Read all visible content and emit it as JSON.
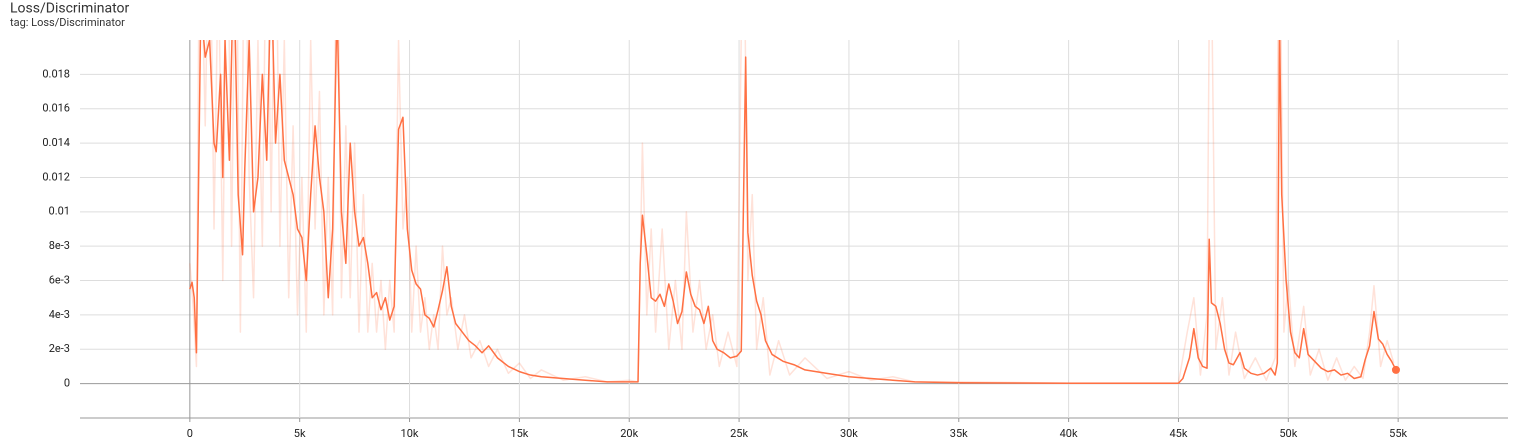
{
  "chart_data": {
    "type": "line",
    "title": "Loss/Discriminator",
    "subtitle": "tag: Loss/Discriminator",
    "xlim": [
      -5000,
      60000
    ],
    "ylim": [
      -0.002,
      0.02
    ],
    "xticks": [
      0,
      {
        "value": 5000,
        "label": "5k"
      },
      {
        "value": 10000,
        "label": "10k"
      },
      {
        "value": 15000,
        "label": "15k"
      },
      {
        "value": 20000,
        "label": "20k"
      },
      {
        "value": 25000,
        "label": "25k"
      },
      {
        "value": 30000,
        "label": "30k"
      },
      {
        "value": 35000,
        "label": "35k"
      },
      {
        "value": 40000,
        "label": "40k"
      },
      {
        "value": 45000,
        "label": "45k"
      },
      {
        "value": 50000,
        "label": "50k"
      },
      {
        "value": 55000,
        "label": "55k"
      }
    ],
    "yticks": [
      0,
      {
        "value": 0.002,
        "label": "2e-3"
      },
      {
        "value": 0.004,
        "label": "4e-3"
      },
      {
        "value": 0.006,
        "label": "6e-3"
      },
      {
        "value": 0.008,
        "label": "8e-3"
      },
      0.01,
      0.012,
      0.014,
      0.016,
      0.018
    ],
    "grid": true,
    "series": [
      {
        "color": "#ff7043",
        "opacity": 0.2,
        "x": [
          0,
          150,
          300,
          450,
          700,
          900,
          1100,
          1300,
          1500,
          1700,
          1900,
          2100,
          2300,
          2500,
          2700,
          2900,
          3100,
          3300,
          3500,
          3700,
          3900,
          4100,
          4300,
          4500,
          4700,
          4900,
          5100,
          5300,
          5500,
          5700,
          5900,
          6100,
          6300,
          6500,
          6700,
          6900,
          7100,
          7300,
          7500,
          7700,
          7900,
          8100,
          8300,
          8500,
          8700,
          8900,
          9100,
          9300,
          9500,
          9700,
          9900,
          10100,
          10300,
          10500,
          10700,
          10900,
          11100,
          11300,
          11500,
          11700,
          11900,
          12200,
          12500,
          12800,
          13200,
          13600,
          14000,
          14500,
          15000,
          15500,
          16000,
          17000,
          18000,
          19000,
          20000,
          20400,
          20600,
          20800,
          21000,
          21200,
          21500,
          21800,
          22100,
          22400,
          22600,
          22900,
          23200,
          23500,
          23800,
          24100,
          24500,
          24900,
          25200,
          25400,
          25600,
          25800,
          26100,
          26400,
          26800,
          27300,
          28000,
          29000,
          30000,
          31000,
          32000,
          33000,
          35000,
          40000,
          45000,
          45400,
          45700,
          46000,
          46300,
          46450,
          46700,
          47000,
          47300,
          47600,
          48000,
          48500,
          49000,
          49400,
          49600,
          49800,
          50000,
          50300,
          50700,
          51000,
          51400,
          51800,
          52200,
          52600,
          53000,
          53400,
          53700,
          53900,
          54200,
          54500,
          54800
        ],
        "values": [
          0.007,
          0.0045,
          0.001,
          0.03,
          0.015,
          0.03,
          0.009,
          0.025,
          0.006,
          0.03,
          0.008,
          0.03,
          0.003,
          0.03,
          0.012,
          0.005,
          0.02,
          0.008,
          0.03,
          0.01,
          0.03,
          0.008,
          0.02,
          0.005,
          0.015,
          0.004,
          0.012,
          0.003,
          0.02,
          0.009,
          0.017,
          0.004,
          0.012,
          0.004,
          0.03,
          0.005,
          0.015,
          0.005,
          0.014,
          0.003,
          0.011,
          0.003,
          0.007,
          0.003,
          0.006,
          0.002,
          0.006,
          0.003,
          0.02,
          0.009,
          0.012,
          0.003,
          0.008,
          0.003,
          0.005,
          0.002,
          0.004,
          0.002,
          0.008,
          0.004,
          0.005,
          0.002,
          0.004,
          0.0015,
          0.0025,
          0.001,
          0.002,
          0.0006,
          0.0012,
          0.0003,
          0.0008,
          0.0002,
          0.0004,
          0.0001,
          0.0002,
          0.0001,
          0.014,
          0.004,
          0.009,
          0.003,
          0.009,
          0.002,
          0.006,
          0.002,
          0.01,
          0.003,
          0.006,
          0.002,
          0.004,
          0.001,
          0.003,
          0.001,
          0.03,
          0.006,
          0.011,
          0.002,
          0.005,
          0.0005,
          0.0025,
          0.0005,
          0.0015,
          0.0003,
          0.0007,
          0.0002,
          0.0004,
          0.0001,
          0.0001,
          3e-05,
          3e-05,
          0.003,
          0.005,
          0.0005,
          0.004,
          0.03,
          0.002,
          0.005,
          0.0005,
          0.003,
          0.0003,
          0.0015,
          0.0002,
          0.0015,
          0.03,
          0.003,
          0.006,
          0.001,
          0.0045,
          0.0005,
          0.002,
          0.0002,
          0.0015,
          0.0002,
          0.001,
          0.0003,
          0.003,
          0.0057,
          0.001,
          0.0025,
          0.0012
        ]
      },
      {
        "color": "#ff7043",
        "opacity": 1,
        "x": [
          0,
          100,
          200,
          300,
          400,
          500,
          700,
          900,
          1100,
          1200,
          1400,
          1500,
          1600,
          1800,
          2000,
          2200,
          2400,
          2500,
          2700,
          2900,
          3100,
          3300,
          3500,
          3700,
          3900,
          4100,
          4300,
          4500,
          4700,
          4900,
          5100,
          5300,
          5500,
          5700,
          5900,
          6100,
          6300,
          6500,
          6700,
          6900,
          7100,
          7300,
          7500,
          7700,
          7900,
          8100,
          8300,
          8500,
          8700,
          8900,
          9100,
          9300,
          9500,
          9700,
          9900,
          10100,
          10300,
          10500,
          10700,
          10900,
          11100,
          11300,
          11500,
          11700,
          11900,
          12100,
          12400,
          12700,
          13000,
          13300,
          13600,
          14000,
          14500,
          15000,
          15500,
          16000,
          17000,
          18000,
          19000,
          20000,
          20400,
          20500,
          20600,
          20800,
          21000,
          21200,
          21400,
          21600,
          21800,
          22000,
          22200,
          22400,
          22600,
          22800,
          23000,
          23200,
          23400,
          23600,
          23800,
          24000,
          24300,
          24600,
          24900,
          25100,
          25300,
          25400,
          25600,
          25800,
          26000,
          26200,
          26500,
          27000,
          27500,
          28000,
          29000,
          30000,
          31000,
          32000,
          33000,
          35000,
          40000,
          45000,
          45200,
          45500,
          45700,
          45900,
          46100,
          46300,
          46400,
          46500,
          46700,
          46900,
          47100,
          47300,
          47500,
          47800,
          48000,
          48300,
          48600,
          48900,
          49200,
          49400,
          49500,
          49600,
          49700,
          49900,
          50100,
          50300,
          50500,
          50700,
          50900,
          51200,
          51500,
          51800,
          52100,
          52400,
          52700,
          53000,
          53300,
          53500,
          53700,
          53900,
          54100,
          54300,
          54500,
          54700,
          54900
        ],
        "values": [
          0.0055,
          0.0059,
          0.005,
          0.0018,
          0.012,
          0.022,
          0.019,
          0.02,
          0.014,
          0.0135,
          0.018,
          0.012,
          0.02,
          0.013,
          0.025,
          0.011,
          0.0075,
          0.0125,
          0.02,
          0.01,
          0.012,
          0.018,
          0.013,
          0.024,
          0.014,
          0.018,
          0.013,
          0.012,
          0.011,
          0.009,
          0.0085,
          0.006,
          0.011,
          0.015,
          0.012,
          0.01,
          0.005,
          0.009,
          0.022,
          0.01,
          0.007,
          0.014,
          0.01,
          0.008,
          0.0085,
          0.007,
          0.005,
          0.0053,
          0.0043,
          0.005,
          0.0037,
          0.0045,
          0.0148,
          0.0155,
          0.009,
          0.0066,
          0.0058,
          0.0055,
          0.004,
          0.0038,
          0.0033,
          0.0043,
          0.0054,
          0.0068,
          0.0045,
          0.0035,
          0.003,
          0.0025,
          0.0022,
          0.0018,
          0.0022,
          0.0015,
          0.001,
          0.0007,
          0.0005,
          0.0004,
          0.0003,
          0.0002,
          0.0001,
          0.0001,
          0.0001,
          0.007,
          0.0098,
          0.0075,
          0.005,
          0.0048,
          0.0052,
          0.0045,
          0.0058,
          0.0048,
          0.0035,
          0.0042,
          0.0065,
          0.0052,
          0.0045,
          0.0043,
          0.0035,
          0.0045,
          0.0025,
          0.002,
          0.0018,
          0.0015,
          0.0016,
          0.0019,
          0.019,
          0.0088,
          0.0063,
          0.0048,
          0.004,
          0.0025,
          0.0017,
          0.0013,
          0.0011,
          0.0008,
          0.0006,
          0.0004,
          0.0003,
          0.0002,
          0.0001,
          5e-05,
          2e-05,
          2e-05,
          0.0003,
          0.0015,
          0.0032,
          0.0015,
          0.001,
          0.0009,
          0.0084,
          0.0047,
          0.0045,
          0.0035,
          0.002,
          0.0012,
          0.0011,
          0.0018,
          0.0009,
          0.0006,
          0.0005,
          0.0006,
          0.0009,
          0.0005,
          0.0012,
          0.021,
          0.011,
          0.006,
          0.003,
          0.0018,
          0.0015,
          0.0032,
          0.0017,
          0.0013,
          0.0009,
          0.0007,
          0.0008,
          0.0005,
          0.0006,
          0.0003,
          0.0004,
          0.0014,
          0.0022,
          0.0042,
          0.0026,
          0.0023,
          0.0017,
          0.0013,
          0.0008
        ]
      }
    ]
  }
}
